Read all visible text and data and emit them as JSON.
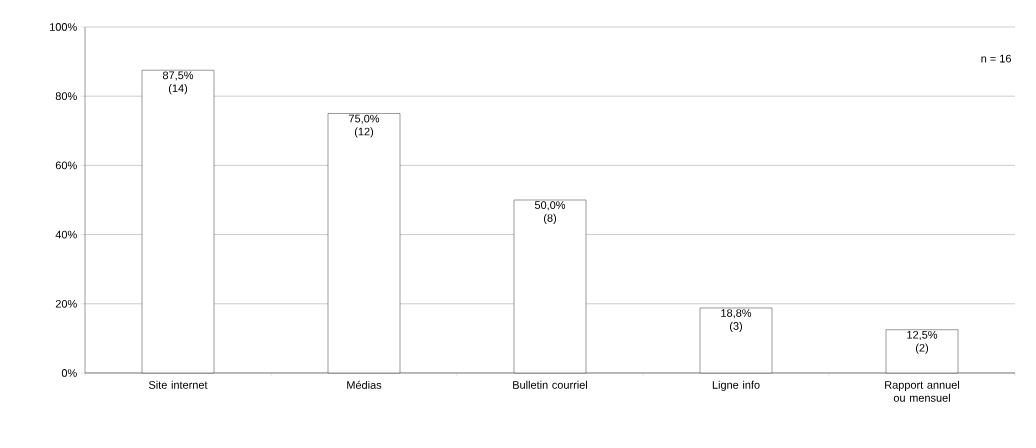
{
  "chart_data": {
    "type": "bar",
    "categories": [
      "Site internet",
      "Médias",
      "Bulletin courriel",
      "Ligne info",
      "Rapport annuel ou mensuel"
    ],
    "values": [
      87.5,
      75.0,
      50.0,
      18.8,
      12.5
    ],
    "value_labels": [
      "87,5% (14)",
      "75,0% (12)",
      "50,0% (8)",
      "18,8% (3)",
      "12,5% (2)"
    ],
    "color": "#ffffff",
    "ylim": [
      0,
      100
    ],
    "yticks": [
      {
        "value": 0,
        "label": "0%"
      },
      {
        "value": 20,
        "label": "20%"
      },
      {
        "value": 40,
        "label": "40%"
      },
      {
        "value": 60,
        "label": "60%"
      },
      {
        "value": 80,
        "label": "80%"
      },
      {
        "value": 100,
        "label": "100%"
      }
    ],
    "grid": "y",
    "annotations": [
      "n = 16"
    ]
  }
}
